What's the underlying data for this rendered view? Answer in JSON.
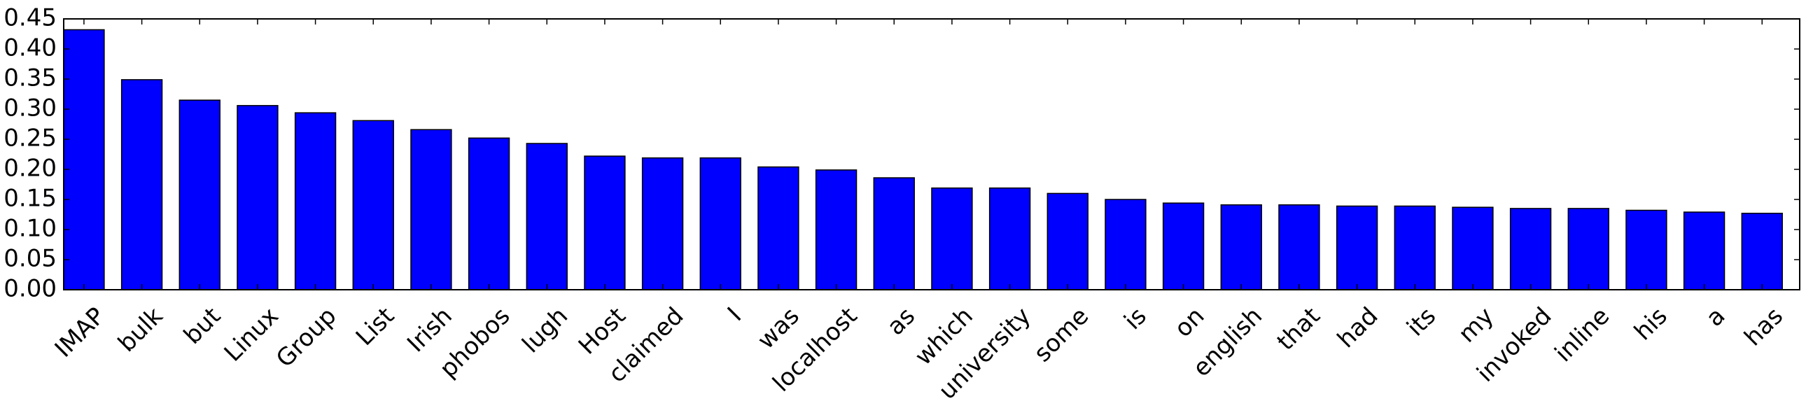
{
  "chart_data": {
    "type": "bar",
    "title": "",
    "xlabel": "",
    "ylabel": "",
    "ylim": [
      0,
      0.45
    ],
    "yticks": [
      "0.00",
      "0.05",
      "0.10",
      "0.15",
      "0.20",
      "0.25",
      "0.30",
      "0.35",
      "0.40",
      "0.45"
    ],
    "grid": false,
    "bar_color": "#0000ff",
    "categories": [
      "IMAP",
      "bulk",
      "but",
      "Linux",
      "Group",
      "List",
      "Irish",
      "phobos",
      "lugh",
      "Host",
      "claimed",
      "I",
      "was",
      "localhost",
      "as",
      "which",
      "university",
      "some",
      "is",
      "on",
      "english",
      "that",
      "had",
      "its",
      "my",
      "invoked",
      "inline",
      "his",
      "a",
      "has"
    ],
    "values": [
      0.432,
      0.349,
      0.315,
      0.306,
      0.294,
      0.281,
      0.266,
      0.252,
      0.243,
      0.222,
      0.219,
      0.219,
      0.204,
      0.199,
      0.186,
      0.169,
      0.169,
      0.16,
      0.15,
      0.144,
      0.141,
      0.141,
      0.139,
      0.139,
      0.137,
      0.135,
      0.135,
      0.132,
      0.129,
      0.127
    ]
  }
}
